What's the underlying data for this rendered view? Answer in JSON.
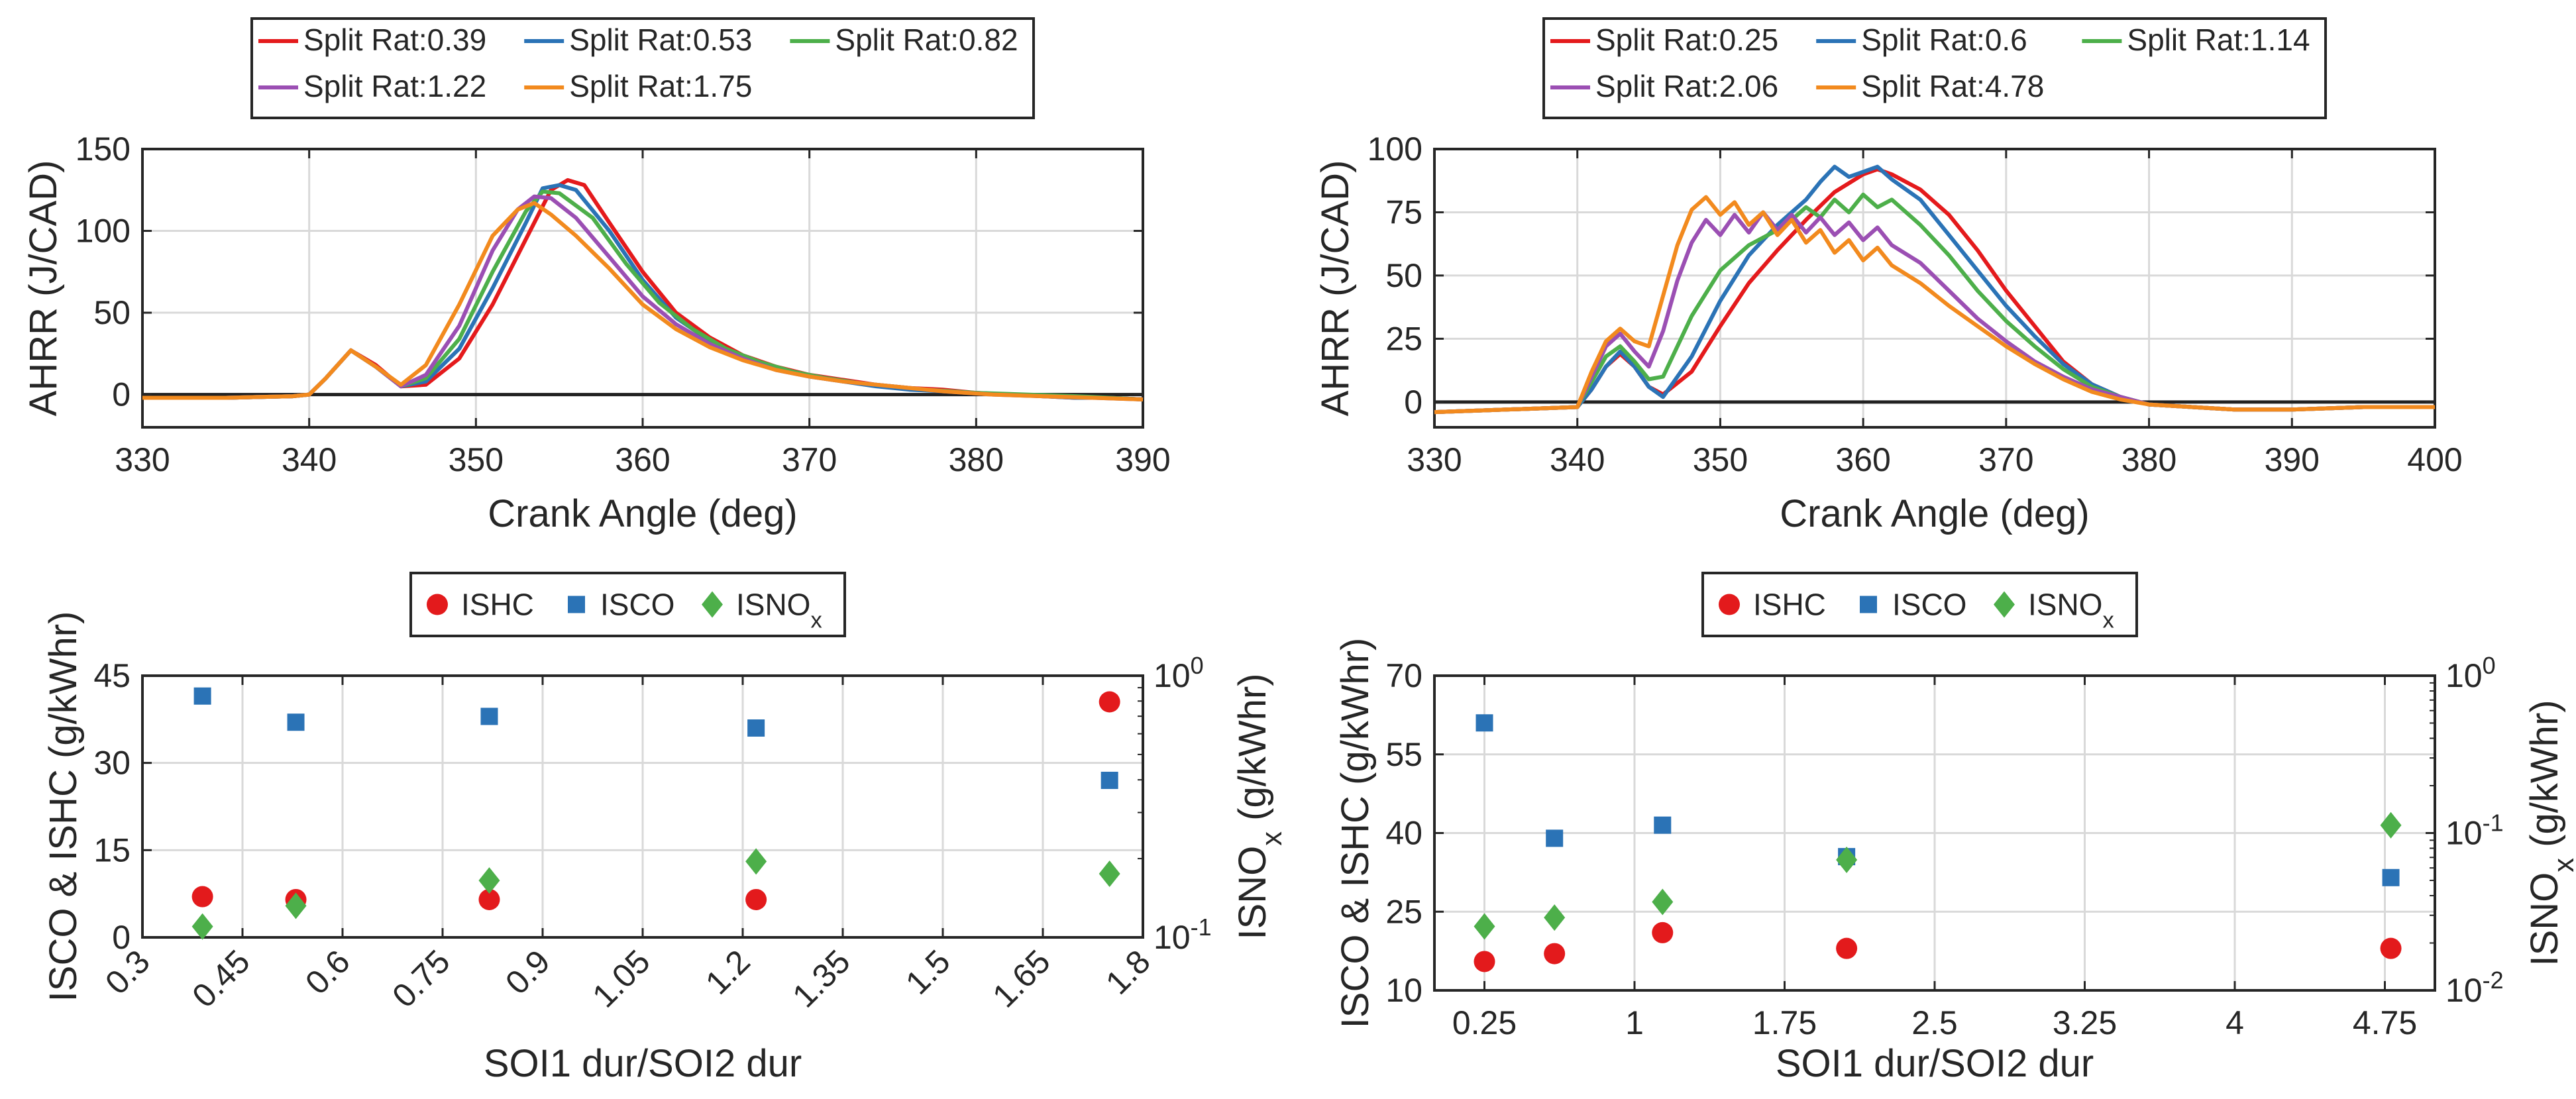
{
  "chart_data": [
    {
      "id": "A",
      "type": "line",
      "xlabel": "Crank Angle (deg)",
      "ylabel": "AHRR (J/CAD)",
      "xlim": [
        330,
        390
      ],
      "ylim": [
        -20,
        150
      ],
      "xticks": [
        330,
        340,
        350,
        360,
        370,
        380,
        390
      ],
      "yticks": [
        0,
        50,
        100,
        150
      ],
      "legend_rows": [
        3,
        2
      ],
      "series": [
        {
          "name": "Split Rat:0.39",
          "color": "#e41a1c",
          "x": [
            330,
            335,
            339,
            340,
            341,
            342.5,
            344,
            345.5,
            347,
            349,
            351,
            353,
            354.5,
            355.5,
            356.5,
            358,
            360,
            362,
            364,
            366,
            368,
            370,
            372,
            374,
            376,
            378,
            380,
            382,
            384,
            386,
            388,
            390
          ],
          "values": [
            -2,
            -2,
            -1,
            0,
            10,
            27,
            18,
            5,
            6,
            22,
            55,
            95,
            125,
            131,
            128,
            105,
            75,
            50,
            35,
            24,
            17,
            12,
            9,
            6,
            4,
            3,
            1,
            0,
            -1,
            -2,
            -2,
            -3
          ]
        },
        {
          "name": "Split Rat:0.53",
          "color": "#2b73b6",
          "x": [
            330,
            335,
            339,
            340,
            341,
            342.5,
            344,
            345.5,
            347,
            349,
            351,
            353,
            354,
            355,
            356,
            358,
            360,
            362,
            364,
            366,
            368,
            370,
            372,
            374,
            376,
            378,
            380,
            382,
            384,
            386,
            388,
            390
          ],
          "values": [
            -2,
            -2,
            -1,
            0,
            10,
            27,
            17,
            5,
            8,
            28,
            65,
            105,
            126,
            128,
            125,
            100,
            70,
            47,
            33,
            23,
            16,
            11,
            8,
            5,
            3,
            2,
            1,
            0,
            -1,
            -2,
            -2,
            -3
          ]
        },
        {
          "name": "Split Rat:0.82",
          "color": "#4daf4a",
          "x": [
            330,
            335,
            339,
            340,
            341,
            342.5,
            344,
            345.5,
            347,
            349,
            351,
            353,
            354,
            355,
            357,
            359,
            361,
            363,
            365,
            367,
            369,
            371,
            373,
            375,
            377,
            380,
            383,
            386,
            388,
            390
          ],
          "values": [
            -2,
            -2,
            -1,
            0,
            10,
            27,
            17,
            5,
            10,
            34,
            75,
            112,
            124,
            123,
            108,
            80,
            56,
            40,
            28,
            20,
            14,
            10,
            7,
            5,
            3,
            1,
            0,
            -1,
            -2,
            -3
          ]
        },
        {
          "name": "Split Rat:1.22",
          "color": "#9b4fb3",
          "x": [
            330,
            335,
            339,
            340,
            341,
            342.5,
            344,
            345.5,
            347,
            349,
            351,
            352.5,
            353.5,
            354.5,
            356,
            358,
            360,
            362,
            364,
            366,
            368,
            370,
            372,
            375,
            378,
            381,
            384,
            387,
            390
          ],
          "values": [
            -2,
            -2,
            -1,
            0,
            10,
            27,
            17,
            5,
            12,
            42,
            88,
            113,
            121,
            120,
            108,
            84,
            60,
            43,
            31,
            22,
            15,
            11,
            8,
            5,
            2,
            0,
            -1,
            -2,
            -3
          ]
        },
        {
          "name": "Split Rat:1.75",
          "color": "#f28a1e",
          "x": [
            330,
            335,
            339,
            340,
            341,
            342.5,
            344,
            345.5,
            347,
            349,
            351,
            352.5,
            353.5,
            354.5,
            356,
            358,
            360,
            362,
            364,
            366,
            368,
            370,
            372,
            375,
            378,
            381,
            384,
            387,
            390
          ],
          "values": [
            -2,
            -2,
            -1,
            0,
            10,
            27,
            17,
            6,
            18,
            55,
            97,
            113,
            117,
            110,
            97,
            77,
            55,
            40,
            29,
            21,
            15,
            11,
            8,
            5,
            2,
            0,
            -1,
            -2,
            -3
          ]
        }
      ]
    },
    {
      "id": "B",
      "type": "line",
      "xlabel": "Crank Angle (deg)",
      "ylabel": "AHRR (J/CAD)",
      "xlim": [
        330,
        400
      ],
      "ylim": [
        -10,
        100
      ],
      "xticks": [
        330,
        340,
        350,
        360,
        370,
        380,
        390,
        400
      ],
      "yticks": [
        0,
        25,
        50,
        75,
        100
      ],
      "legend_rows": [
        3,
        2
      ],
      "series": [
        {
          "name": "Split Rat:0.25",
          "color": "#e41a1c",
          "x": [
            330,
            335,
            340,
            341,
            342,
            343,
            344,
            345,
            346,
            348,
            350,
            352,
            354,
            356,
            358,
            360,
            361,
            362,
            364,
            366,
            368,
            370,
            372,
            374,
            376,
            378,
            380,
            383,
            386,
            390,
            395,
            400
          ],
          "values": [
            -4,
            -3,
            -2,
            5,
            14,
            19,
            14,
            6,
            3,
            12,
            30,
            47,
            60,
            72,
            83,
            90,
            92,
            90,
            84,
            74,
            60,
            44,
            30,
            16,
            7,
            2,
            -1,
            -2,
            -3,
            -3,
            -2,
            -2
          ]
        },
        {
          "name": "Split Rat:0.6",
          "color": "#2b73b6",
          "x": [
            330,
            335,
            340,
            341,
            342,
            343,
            344,
            345,
            346,
            348,
            350,
            352,
            354,
            356,
            357,
            358,
            359,
            360,
            361,
            362,
            364,
            366,
            368,
            370,
            372,
            374,
            376,
            378,
            380,
            383,
            386,
            390,
            395,
            400
          ],
          "values": [
            -4,
            -3,
            -2,
            5,
            14,
            20,
            14,
            6,
            2,
            18,
            40,
            58,
            70,
            80,
            87,
            93,
            89,
            91,
            93,
            88,
            80,
            66,
            52,
            38,
            26,
            15,
            7,
            2,
            -1,
            -2,
            -3,
            -3,
            -2,
            -2
          ]
        },
        {
          "name": "Split Rat:1.14",
          "color": "#4daf4a",
          "x": [
            330,
            335,
            340,
            341,
            342,
            343,
            344,
            345,
            346,
            348,
            350,
            352,
            354,
            355,
            356,
            357,
            358,
            359,
            360,
            361,
            362,
            364,
            366,
            368,
            370,
            372,
            374,
            376,
            378,
            380,
            383,
            386,
            390,
            395,
            400
          ],
          "values": [
            -4,
            -3,
            -2,
            8,
            18,
            22,
            16,
            9,
            10,
            34,
            52,
            62,
            68,
            72,
            77,
            73,
            80,
            75,
            82,
            77,
            80,
            70,
            58,
            44,
            32,
            22,
            13,
            6,
            2,
            -1,
            -2,
            -3,
            -3,
            -2,
            -2
          ]
        },
        {
          "name": "Split Rat:2.06",
          "color": "#9b4fb3",
          "x": [
            330,
            335,
            340,
            341,
            342,
            343,
            344,
            345,
            346,
            347,
            348,
            349,
            350,
            351,
            352,
            353,
            354,
            355,
            356,
            357,
            358,
            359,
            360,
            361,
            362,
            364,
            366,
            368,
            370,
            372,
            374,
            376,
            378,
            380,
            383,
            386,
            390,
            395,
            400
          ],
          "values": [
            -4,
            -3,
            -2,
            10,
            22,
            27,
            20,
            14,
            28,
            48,
            63,
            72,
            66,
            74,
            67,
            75,
            68,
            74,
            67,
            73,
            66,
            71,
            64,
            69,
            62,
            55,
            44,
            33,
            24,
            16,
            10,
            5,
            2,
            -1,
            -2,
            -3,
            -3,
            -2,
            -2
          ]
        },
        {
          "name": "Split Rat:4.78",
          "color": "#f28a1e",
          "x": [
            330,
            335,
            340,
            341,
            342,
            343,
            344,
            345,
            346,
            347,
            348,
            349,
            350,
            351,
            352,
            353,
            354,
            355,
            356,
            357,
            358,
            359,
            360,
            361,
            362,
            364,
            366,
            368,
            370,
            372,
            374,
            376,
            378,
            380,
            383,
            386,
            390,
            395,
            400
          ],
          "values": [
            -4,
            -3,
            -2,
            12,
            24,
            29,
            24,
            22,
            42,
            62,
            76,
            81,
            74,
            79,
            70,
            75,
            66,
            72,
            63,
            68,
            59,
            64,
            56,
            61,
            54,
            47,
            38,
            30,
            22,
            15,
            9,
            4,
            1,
            -1,
            -2,
            -3,
            -3,
            -2,
            -2
          ]
        }
      ]
    },
    {
      "id": "C",
      "type": "scatter",
      "xlabel": "SOI1 dur/SOI2 dur",
      "ylabel": "ISCO & ISHC (g/kWhr)",
      "ylabel_right": "ISNOx (g/kWhr)",
      "xlim": [
        0.3,
        1.8
      ],
      "ylim": [
        0,
        45
      ],
      "ylim_right": [
        0.1,
        1
      ],
      "xticks": [
        "0.3",
        "0.45",
        "0.6",
        "0.75",
        "0.9",
        "1.05",
        "1.2",
        "1.35",
        "1.5",
        "1.65",
        "1.8"
      ],
      "yticks": [
        0,
        15,
        30,
        45
      ],
      "yticks_right": [
        "10",
        "10"
      ],
      "yticks_right_exp": [
        "-1",
        "0"
      ],
      "series": [
        {
          "name": "ISHC",
          "marker": "circle",
          "color": "#e31a1c",
          "axis": "left",
          "x": [
            0.39,
            0.53,
            0.82,
            1.22,
            1.75
          ],
          "values": [
            7,
            6.5,
            6.5,
            6.5,
            40.5
          ]
        },
        {
          "name": "ISCO",
          "marker": "square",
          "color": "#2b73b6",
          "axis": "left",
          "x": [
            0.39,
            0.53,
            0.82,
            1.22,
            1.75
          ],
          "values": [
            41.5,
            37,
            38,
            36,
            27
          ]
        },
        {
          "name": "ISNOx",
          "marker": "diamond",
          "color": "#4daf4a",
          "axis": "right",
          "x": [
            0.39,
            0.53,
            0.82,
            1.22,
            1.75
          ],
          "values": [
            0.11,
            0.132,
            0.165,
            0.195,
            0.175
          ]
        }
      ]
    },
    {
      "id": "D",
      "type": "scatter",
      "xlabel": "SOI1 dur/SOI2 dur",
      "ylabel": "ISCO & ISHC (g/kWhr)",
      "ylabel_right": "ISNOx (g/kWhr)",
      "xlim": [
        0,
        5
      ],
      "ylim": [
        10,
        70
      ],
      "ylim_right": [
        0.01,
        1
      ],
      "xticks": [
        "0.25",
        "1",
        "1.75",
        "2.5",
        "3.25",
        "4",
        "4.75"
      ],
      "yticks": [
        10,
        25,
        40,
        55,
        70
      ],
      "yticks_right": [
        "10",
        "10",
        "10"
      ],
      "yticks_right_exp": [
        "-2",
        "-1",
        "0"
      ],
      "series": [
        {
          "name": "ISHC",
          "marker": "circle",
          "color": "#e31a1c",
          "axis": "left",
          "x": [
            0.25,
            0.6,
            1.14,
            2.06,
            4.78
          ],
          "values": [
            15.5,
            17,
            21,
            18,
            18
          ]
        },
        {
          "name": "ISCO",
          "marker": "square",
          "color": "#2b73b6",
          "axis": "left",
          "x": [
            0.25,
            0.6,
            1.14,
            2.06,
            4.78
          ],
          "values": [
            61,
            39,
            41.5,
            35.5,
            31.5
          ]
        },
        {
          "name": "ISNOx",
          "marker": "diamond",
          "color": "#4daf4a",
          "axis": "right",
          "x": [
            0.25,
            0.6,
            1.14,
            2.06,
            4.78
          ],
          "values": [
            0.0255,
            0.029,
            0.0365,
            0.0675,
            0.112
          ]
        }
      ]
    }
  ]
}
